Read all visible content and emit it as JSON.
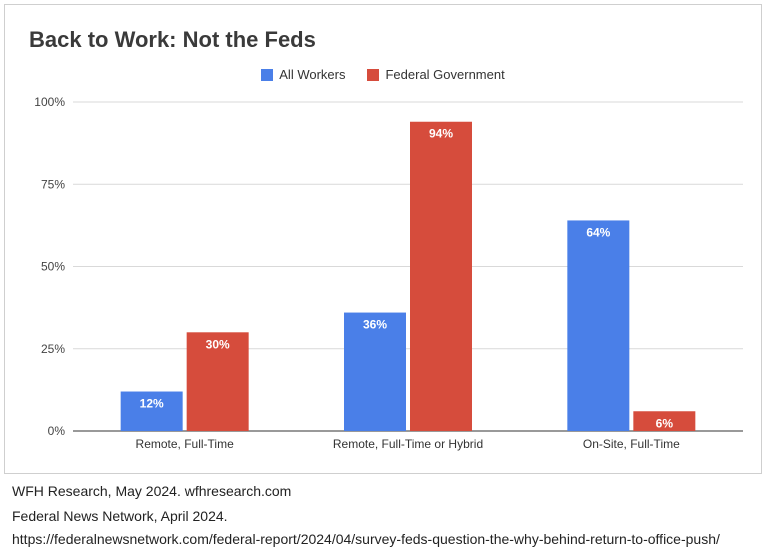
{
  "chart_data": {
    "type": "bar",
    "title": "Back to Work: Not the Feds",
    "categories": [
      "Remote, Full-Time",
      "Remote, Full-Time or Hybrid",
      "On-Site, Full-Time"
    ],
    "series": [
      {
        "name": "All Workers",
        "color": "#4a7fe8",
        "values": [
          12,
          36,
          64
        ],
        "labels": [
          "12%",
          "36%",
          "64%"
        ]
      },
      {
        "name": "Federal Government",
        "color": "#d64c3c",
        "values": [
          30,
          94,
          6
        ],
        "labels": [
          "30%",
          "94%",
          "6%"
        ]
      }
    ],
    "yticks": [
      0,
      25,
      50,
      75,
      100
    ],
    "ytick_labels": [
      "0%",
      "25%",
      "50%",
      "75%",
      "100%"
    ],
    "ylim": [
      0,
      100
    ],
    "legend_position": "top-center",
    "grid": true
  },
  "sources": [
    "WFH Research, May 2024. wfhresearch.com",
    "Federal News Network, April 2024.",
    "https://federalnewsnetwork.com/federal-report/2024/04/survey-feds-question-the-why-behind-return-to-office-push/"
  ]
}
